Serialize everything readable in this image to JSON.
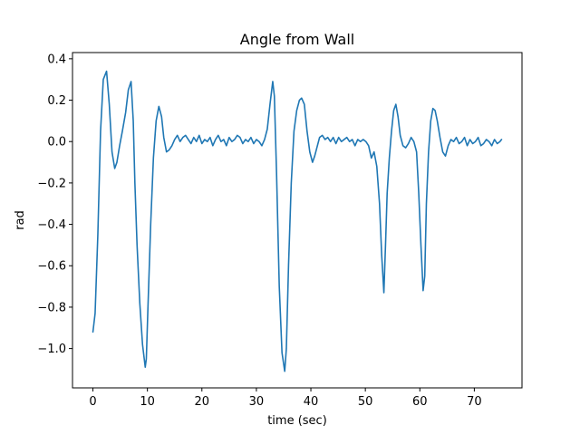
{
  "chart_data": {
    "type": "line",
    "title": "Angle from Wall",
    "xlabel": "time (sec)",
    "ylabel": "rad",
    "xlim": [
      -3.75,
      78.75
    ],
    "ylim": [
      -1.19,
      0.43
    ],
    "xticks": [
      0,
      10,
      20,
      30,
      40,
      50,
      60,
      70
    ],
    "xtick_labels": [
      "0",
      "10",
      "20",
      "30",
      "40",
      "50",
      "60",
      "70"
    ],
    "yticks": [
      0.4,
      0.2,
      0.0,
      -0.2,
      -0.4,
      -0.6,
      -0.8,
      -1.0
    ],
    "ytick_labels": [
      "0.4",
      "0.2",
      "0.0",
      "−0.2",
      "−0.4",
      "−0.6",
      "−0.8",
      "−1.0"
    ],
    "grid": false,
    "legend": "none",
    "color": "#1f77b4",
    "series": [
      {
        "x": [
          0,
          0.4,
          0.9,
          1.4,
          1.9,
          2.5,
          3.0,
          3.5,
          4.0,
          4.4,
          4.9,
          5.4,
          6.0,
          6.5,
          7.0,
          7.4,
          7.7,
          8.1,
          8.6,
          9.1,
          9.6,
          9.8,
          10.1,
          10.6,
          11.1,
          11.6,
          12.1,
          12.6,
          13.0,
          13.5,
          14.0,
          14.5,
          15.0,
          15.5,
          16.0,
          16.5,
          17.0,
          17.5,
          18.0,
          18.5,
          19.0,
          19.5,
          20.0,
          20.5,
          21.0,
          21.5,
          22.0,
          22.5,
          23.0,
          23.5,
          24.0,
          24.5,
          25.0,
          25.5,
          26.0,
          26.5,
          27.0,
          27.5,
          28.0,
          28.5,
          29.0,
          29.5,
          30.0,
          30.5,
          31.0,
          31.5,
          32.0,
          32.5,
          33.0,
          33.3,
          33.7,
          34.2,
          34.7,
          35.2,
          35.5,
          35.9,
          36.4,
          36.9,
          37.4,
          37.9,
          38.3,
          38.8,
          39.3,
          39.8,
          40.3,
          40.7,
          41.1,
          41.6,
          42.1,
          42.6,
          43.1,
          43.6,
          44.1,
          44.6,
          45.1,
          45.6,
          46.1,
          46.6,
          47.1,
          47.6,
          48.1,
          48.6,
          49.1,
          49.6,
          50.1,
          50.6,
          51.1,
          51.6,
          52.1,
          52.6,
          53.0,
          53.4,
          53.7,
          54.0,
          54.4,
          54.8,
          55.2,
          55.6,
          56.0,
          56.4,
          56.9,
          57.4,
          57.9,
          58.4,
          58.9,
          59.4,
          59.8,
          60.2,
          60.6,
          60.9,
          61.2,
          61.6,
          62.0,
          62.4,
          62.8,
          63.2,
          63.7,
          64.2,
          64.7,
          65.2,
          65.7,
          66.2,
          66.7,
          67.2,
          67.7,
          68.2,
          68.7,
          69.2,
          69.7,
          70.2,
          70.7,
          71.2,
          71.7,
          72.2,
          72.7,
          73.2,
          73.7,
          74.2,
          74.7,
          75.0
        ],
        "y": [
          -0.92,
          -0.83,
          -0.45,
          0.05,
          0.3,
          0.34,
          0.18,
          -0.05,
          -0.13,
          -0.1,
          -0.02,
          0.05,
          0.14,
          0.25,
          0.29,
          0.1,
          -0.2,
          -0.5,
          -0.78,
          -0.98,
          -1.09,
          -1.05,
          -0.8,
          -0.4,
          -0.08,
          0.1,
          0.17,
          0.12,
          0.02,
          -0.05,
          -0.04,
          -0.02,
          0.01,
          0.03,
          0.0,
          0.02,
          0.03,
          0.01,
          -0.01,
          0.02,
          0.0,
          0.03,
          -0.01,
          0.01,
          0.0,
          0.02,
          -0.02,
          0.01,
          0.03,
          0.0,
          0.01,
          -0.02,
          0.02,
          0.0,
          0.01,
          0.03,
          0.02,
          -0.01,
          0.01,
          0.0,
          0.02,
          -0.01,
          0.01,
          0.0,
          -0.02,
          0.01,
          0.06,
          0.18,
          0.29,
          0.22,
          -0.15,
          -0.7,
          -1.02,
          -1.11,
          -1.0,
          -0.6,
          -0.2,
          0.05,
          0.15,
          0.2,
          0.21,
          0.18,
          0.05,
          -0.05,
          -0.1,
          -0.07,
          -0.03,
          0.02,
          0.03,
          0.01,
          0.02,
          0.0,
          0.02,
          -0.01,
          0.02,
          0.0,
          0.01,
          0.02,
          0.0,
          0.01,
          -0.02,
          0.01,
          0.0,
          0.01,
          0.0,
          -0.02,
          -0.08,
          -0.05,
          -0.12,
          -0.3,
          -0.55,
          -0.73,
          -0.5,
          -0.25,
          -0.08,
          0.05,
          0.15,
          0.18,
          0.12,
          0.03,
          -0.02,
          -0.03,
          -0.01,
          0.02,
          0.0,
          -0.05,
          -0.25,
          -0.5,
          -0.72,
          -0.65,
          -0.3,
          -0.05,
          0.1,
          0.16,
          0.15,
          0.1,
          0.02,
          -0.05,
          -0.07,
          -0.02,
          0.01,
          0.0,
          0.02,
          -0.01,
          0.0,
          0.02,
          -0.02,
          0.01,
          -0.01,
          0.0,
          0.02,
          -0.02,
          -0.01,
          0.01,
          0.0,
          -0.02,
          0.01,
          -0.01,
          0.0,
          0.01
        ]
      }
    ]
  }
}
